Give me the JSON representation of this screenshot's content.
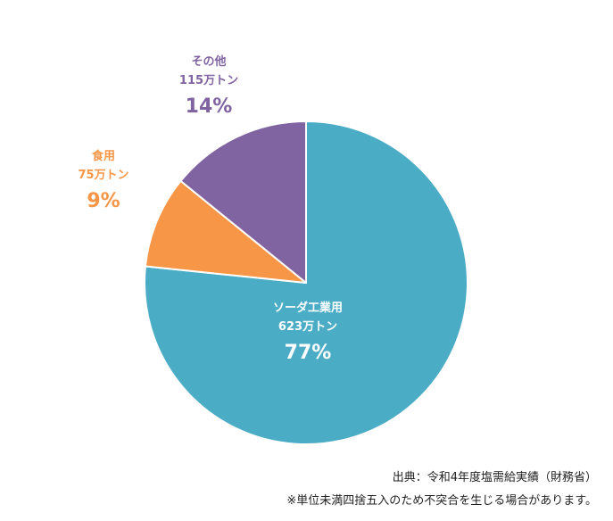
{
  "chart_data": {
    "type": "pie",
    "start_angle_deg": 0,
    "direction": "clockwise",
    "slices": [
      {
        "name": "ソーダ工業用",
        "value": 623,
        "value_label": "623万トン",
        "percent_label": "77%",
        "color": "#4bacc6"
      },
      {
        "name": "食用",
        "value": 75,
        "value_label": "75万トン",
        "percent_label": "9%",
        "color": "#f79646"
      },
      {
        "name": "その他",
        "value": 115,
        "value_label": "115万トン",
        "percent_label": "14%",
        "color": "#8064a2"
      }
    ]
  },
  "notes": {
    "source": "出典：令和4年度塩需給実績（財務省）",
    "rounding": "※単位未満四捨五入のため不突合を生じる場合があります。"
  }
}
